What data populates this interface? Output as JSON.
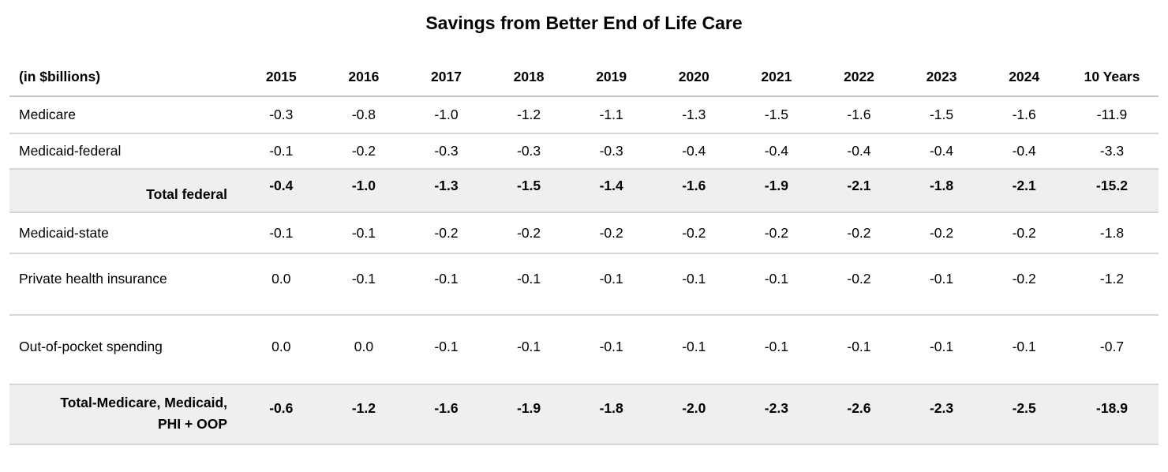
{
  "chart_data": {
    "type": "table",
    "title": "Savings from Better End of Life Care",
    "unit_label": "(in $billions)",
    "columns": [
      "2015",
      "2016",
      "2017",
      "2018",
      "2019",
      "2020",
      "2021",
      "2022",
      "2023",
      "2024",
      "10 Years"
    ],
    "rows": [
      {
        "label": "Medicare",
        "style": "normal",
        "values": [
          "-0.3",
          "-0.8",
          "-1.0",
          "-1.2",
          "-1.1",
          "-1.3",
          "-1.5",
          "-1.6",
          "-1.5",
          "-1.6",
          "-11.9"
        ]
      },
      {
        "label": "Medicaid-federal",
        "style": "normal",
        "values": [
          "-0.1",
          "-0.2",
          "-0.3",
          "-0.3",
          "-0.3",
          "-0.4",
          "-0.4",
          "-0.4",
          "-0.4",
          "-0.4",
          "-3.3"
        ]
      },
      {
        "label": "Total federal",
        "style": "total",
        "values": [
          "-0.4",
          "-1.0",
          "-1.3",
          "-1.5",
          "-1.4",
          "-1.6",
          "-1.9",
          "-2.1",
          "-1.8",
          "-2.1",
          "-15.2"
        ]
      },
      {
        "label": "Medicaid-state",
        "style": "normal",
        "values": [
          "-0.1",
          "-0.1",
          "-0.2",
          "-0.2",
          "-0.2",
          "-0.2",
          "-0.2",
          "-0.2",
          "-0.2",
          "-0.2",
          "-1.8"
        ]
      },
      {
        "label": "Private health insurance",
        "style": "normal",
        "values": [
          "0.0",
          "-0.1",
          "-0.1",
          "-0.1",
          "-0.1",
          "-0.1",
          "-0.1",
          "-0.2",
          "-0.1",
          "-0.2",
          "-1.2"
        ]
      },
      {
        "label": "Out-of-pocket spending",
        "style": "normal",
        "values": [
          "0.0",
          "0.0",
          "-0.1",
          "-0.1",
          "-0.1",
          "-0.1",
          "-0.1",
          "-0.1",
          "-0.1",
          "-0.1",
          "-0.7"
        ]
      },
      {
        "label": "Total-Medicare, Medicaid, PHI + OOP",
        "style": "total",
        "values": [
          "-0.6",
          "-1.2",
          "-1.6",
          "-1.9",
          "-1.8",
          "-2.0",
          "-2.3",
          "-2.6",
          "-2.3",
          "-2.5",
          "-18.9"
        ]
      }
    ],
    "layout_hints": {
      "grid": "horizontal-rules-only",
      "total_rows_shaded": true
    },
    "colors": {
      "background": "#ffffff",
      "total_row_background": "#efefef",
      "rule": "#d6d6d6",
      "text": "#000000"
    }
  }
}
